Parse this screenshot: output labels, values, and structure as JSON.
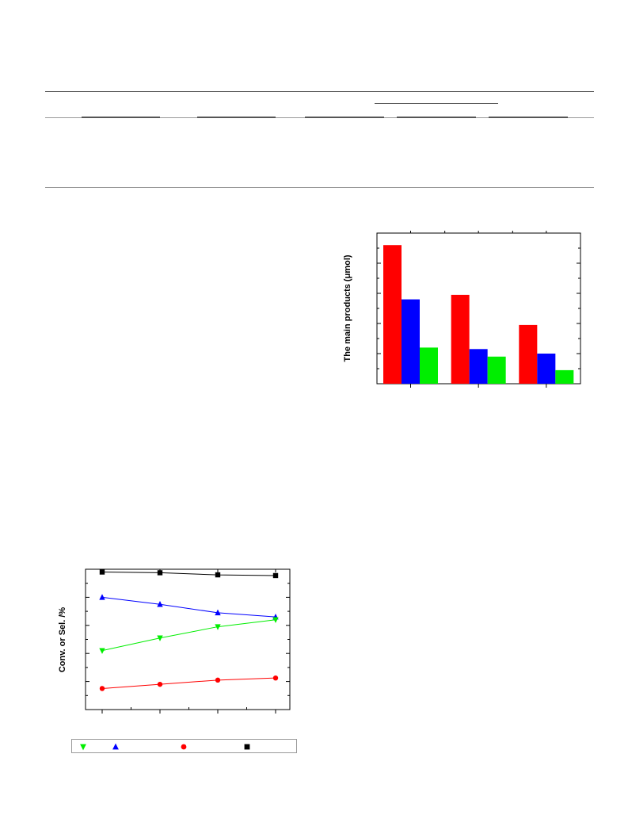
{
  "colors": {
    "red": "#ff0000",
    "blue": "#0000ff",
    "green": "#00ee00",
    "black": "#000000",
    "rule": "#555555"
  },
  "chart_data": [
    {
      "type": "bar",
      "ylabel": "The main products (μmol)",
      "grid": false,
      "ylim": [
        0,
        100
      ],
      "categories": [
        "",
        "",
        ""
      ],
      "series": [
        {
          "color": "#ff0000",
          "values": [
            92,
            59,
            39
          ]
        },
        {
          "color": "#0000ff",
          "values": [
            56,
            23,
            20
          ]
        },
        {
          "color": "#00ee00",
          "values": [
            24,
            18,
            9
          ]
        }
      ]
    },
    {
      "type": "line",
      "ylabel": "Conv. or Sel. /%",
      "grid": false,
      "ylim": [
        0,
        100
      ],
      "x": [
        1,
        2,
        3,
        4
      ],
      "series": [
        {
          "marker": "square",
          "color": "#000000",
          "values": [
            98,
            97.5,
            96,
            95.5
          ]
        },
        {
          "marker": "triangle-up",
          "color": "#0000ff",
          "values": [
            80,
            75,
            69,
            66
          ]
        },
        {
          "marker": "triangle-down",
          "color": "#00ee00",
          "values": [
            42,
            51,
            59,
            64
          ]
        },
        {
          "marker": "circle",
          "color": "#ff0000",
          "values": [
            15,
            18,
            21,
            22.5
          ]
        }
      ],
      "legend": {
        "placement": "bottom",
        "items": [
          "triangle-down",
          "triangle-up",
          "circle",
          "square"
        ]
      }
    }
  ]
}
